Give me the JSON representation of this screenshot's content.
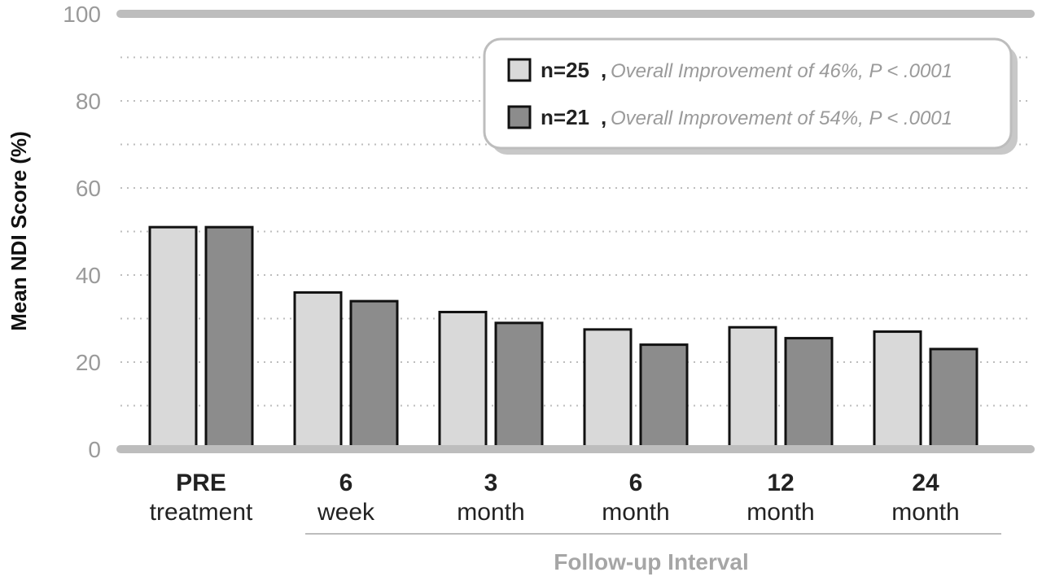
{
  "chart_data": {
    "type": "bar",
    "ylabel": "Mean NDI Score (%)",
    "xlabel": "Follow-up Interval",
    "ylim": [
      0,
      100
    ],
    "yticks": [
      0,
      20,
      40,
      60,
      80,
      100
    ],
    "grid": true,
    "legend_position": "top-right",
    "categories": [
      {
        "top": "PRE",
        "bottom": "treatment"
      },
      {
        "top": "6",
        "bottom": "week"
      },
      {
        "top": "3",
        "bottom": "month"
      },
      {
        "top": "6",
        "bottom": "month"
      },
      {
        "top": "12",
        "bottom": "month"
      },
      {
        "top": "24",
        "bottom": "month"
      }
    ],
    "series": [
      {
        "name": "n=25",
        "description": "Overall Improvement of 46%, P < .0001",
        "color": "#d9d9d9",
        "values": [
          51,
          36,
          31.5,
          27.5,
          28,
          27
        ]
      },
      {
        "name": "n=21",
        "description": "Overall Improvement of 54%, P < .0001",
        "color": "#8c8c8c",
        "values": [
          51,
          34,
          29,
          24,
          25.5,
          23
        ]
      }
    ]
  }
}
